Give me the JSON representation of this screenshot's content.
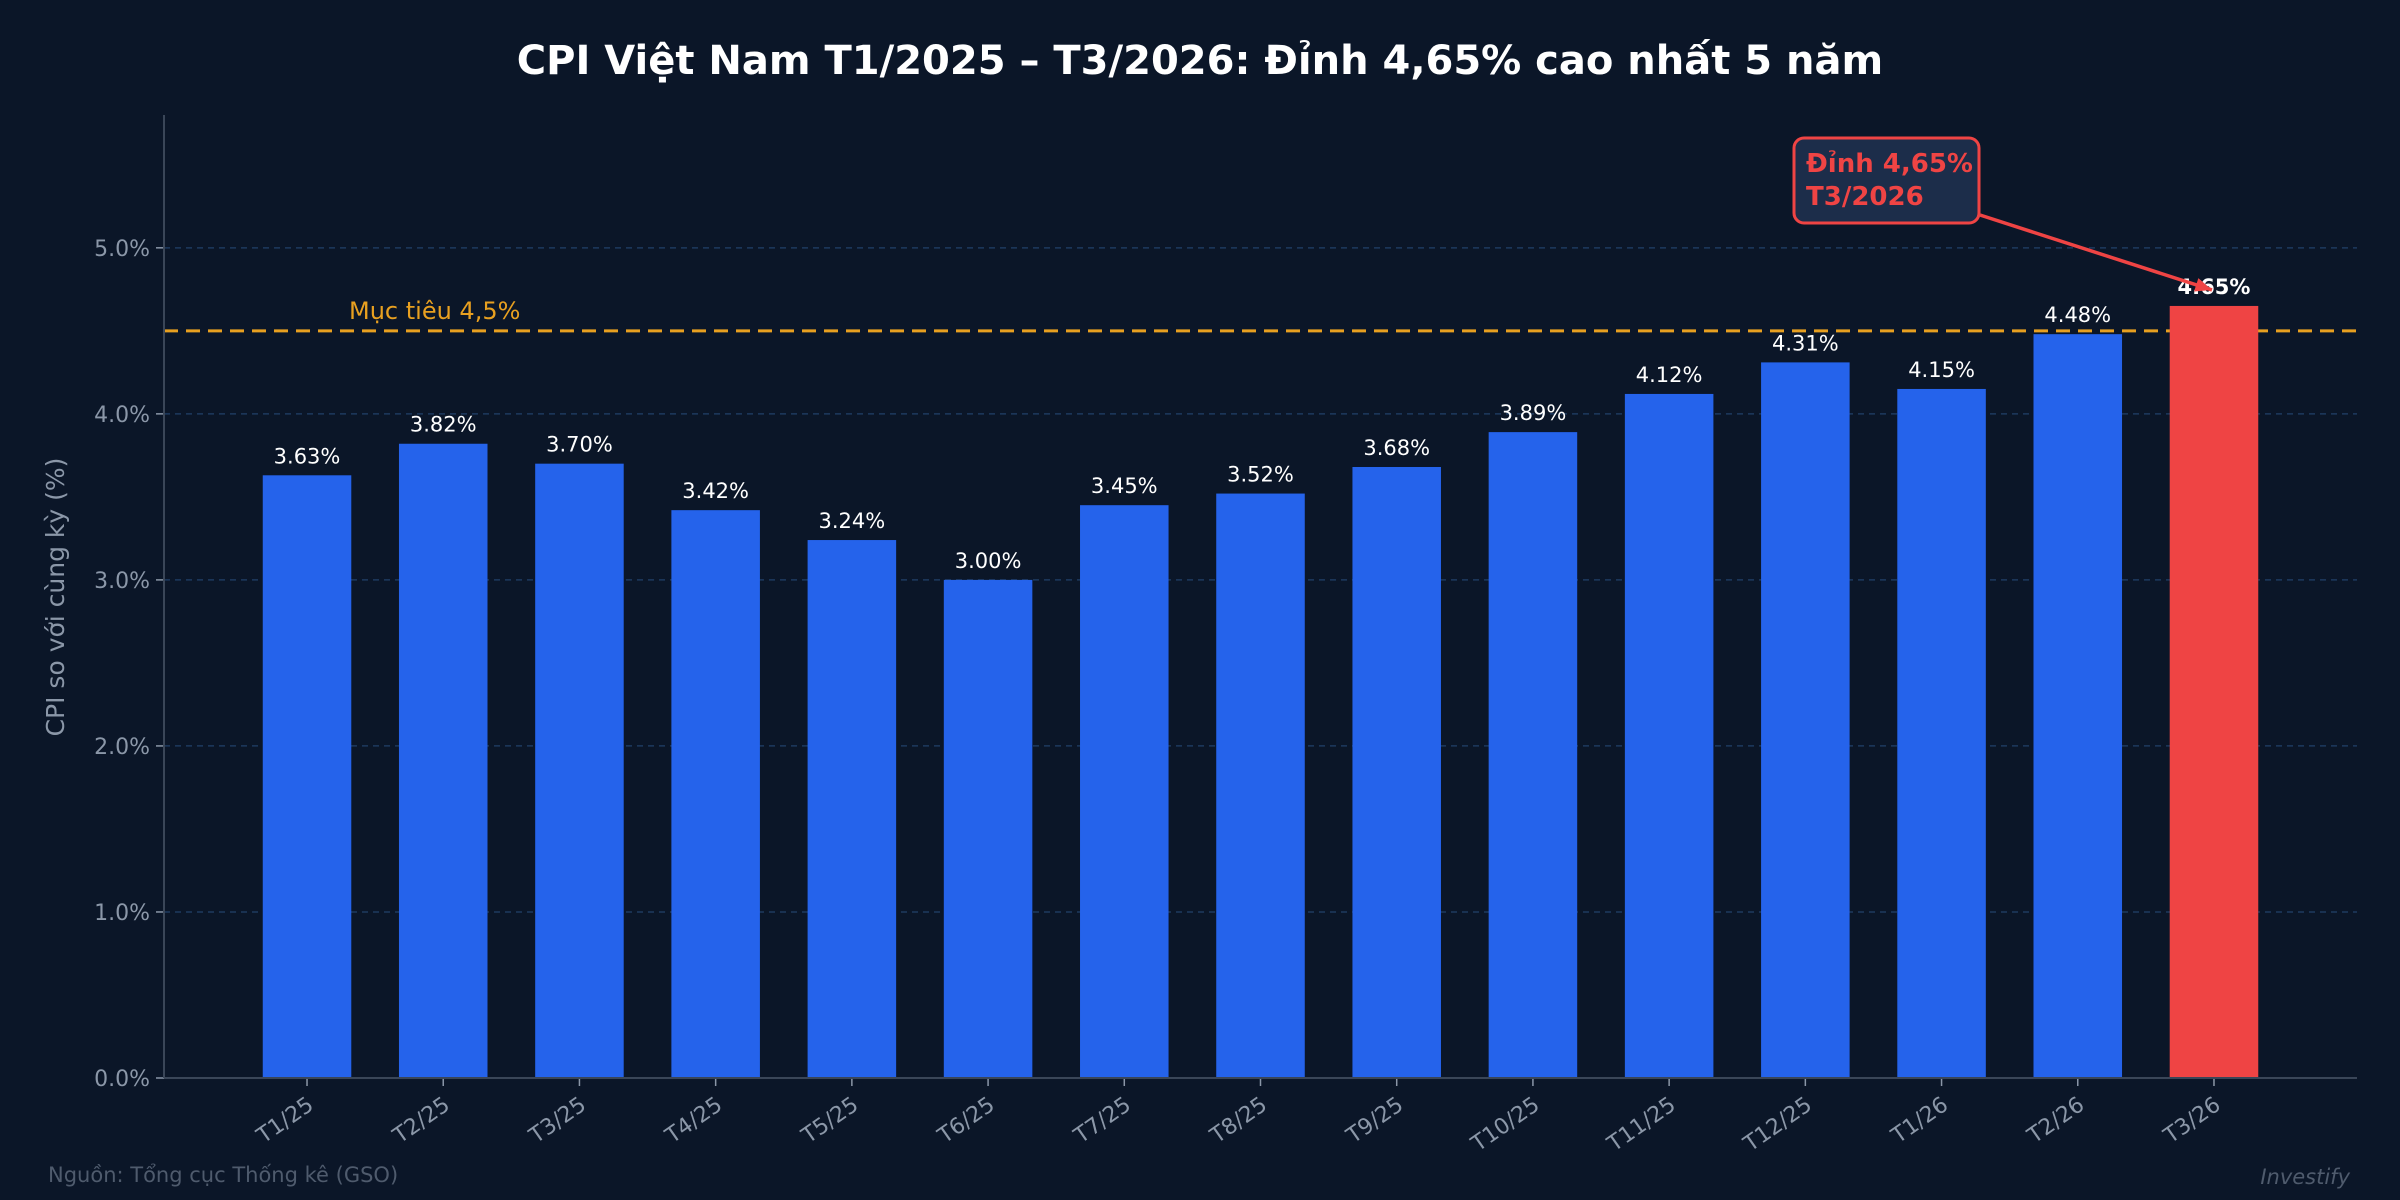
{
  "chart_data": {
    "type": "bar",
    "title": "CPI Việt Nam T1/2025 – T3/2026: Đỉnh 4,65% cao nhất 5 năm",
    "xlabel": "",
    "ylabel": "CPI so với cùng kỳ (%)",
    "categories": [
      "T1/25",
      "T2/25",
      "T3/25",
      "T4/25",
      "T5/25",
      "T6/25",
      "T7/25",
      "T8/25",
      "T9/25",
      "T10/25",
      "T11/25",
      "T12/25",
      "T1/26",
      "T2/26",
      "T3/26"
    ],
    "values": [
      3.63,
      3.82,
      3.7,
      3.42,
      3.24,
      3.0,
      3.45,
      3.52,
      3.68,
      3.89,
      4.12,
      4.31,
      4.15,
      4.48,
      4.65
    ],
    "data_labels": [
      "3.63%",
      "3.82%",
      "3.70%",
      "3.42%",
      "3.24%",
      "3.00%",
      "3.45%",
      "3.52%",
      "3.68%",
      "3.89%",
      "4.12%",
      "4.31%",
      "4.15%",
      "4.48%",
      "4.65%"
    ],
    "ylim": [
      0,
      5.8
    ],
    "yticks": [
      0,
      1,
      2,
      3,
      4,
      5
    ],
    "ytick_labels": [
      "0.0%",
      "1.0%",
      "2.0%",
      "3.0%",
      "4.0%",
      "5.0%"
    ],
    "grid": "horizontal dashed",
    "target_line": {
      "value": 4.5,
      "label": "Mục tiêu 4,5%",
      "color": "#e8a020"
    },
    "annotation": {
      "lines": [
        "Đỉnh 4,65%",
        "T3/2026"
      ],
      "target_index": 14,
      "color": "#ef4444"
    },
    "colors": {
      "bar": "#2563eb",
      "highlight": "#ef4444",
      "background": "#0b1628",
      "grid": "#1e3a5f"
    }
  },
  "footer": {
    "source": "Nguồn: Tổng cục Thống kê (GSO)",
    "brand": "Investify"
  }
}
